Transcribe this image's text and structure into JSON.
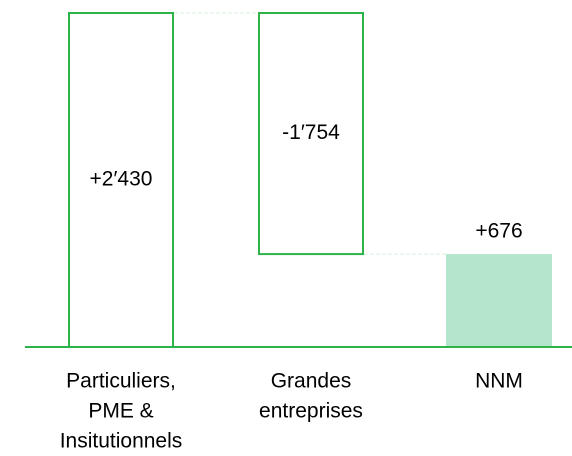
{
  "chart_data": {
    "type": "waterfall",
    "categories": [
      [
        "Particuliers,",
        "PME &",
        "Insitutionnels"
      ],
      [
        "Grandes",
        "entreprises"
      ],
      [
        "NNM"
      ]
    ],
    "values": [
      2430,
      -1754,
      676
    ],
    "value_labels": [
      "+2′430",
      "-1′754",
      "+676"
    ],
    "color": "#2db34a",
    "total_color": "#b3e6cc"
  }
}
